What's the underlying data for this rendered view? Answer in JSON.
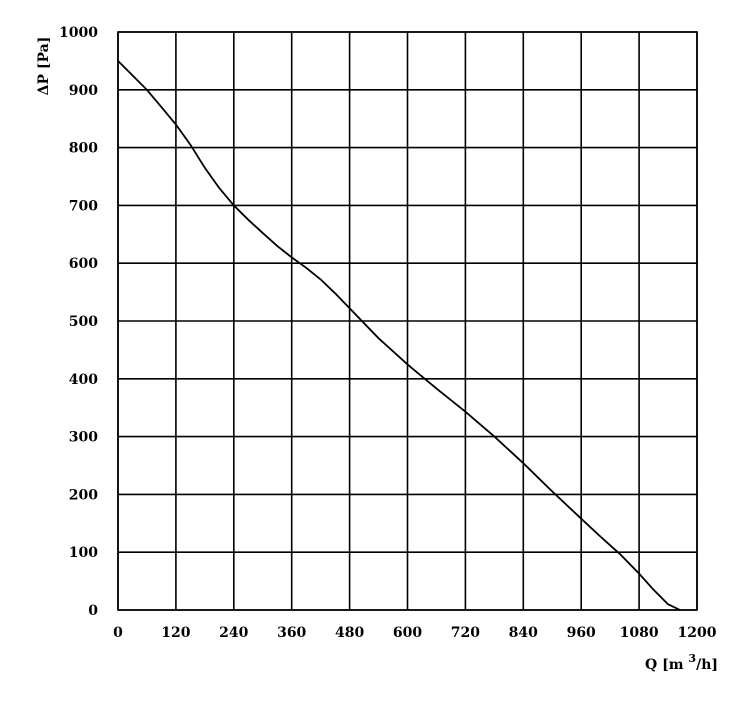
{
  "chart_data": {
    "type": "line",
    "title": "",
    "xlabel": "Q [m³/h]",
    "xlabel_parts": {
      "prefix": "Q [m ",
      "sup": "3",
      "suffix": "/h]"
    },
    "ylabel": "ΔP [Pa]",
    "xlim": [
      0,
      1200
    ],
    "ylim": [
      0,
      1000
    ],
    "x_ticks": [
      "0",
      "120",
      "240",
      "360",
      "480",
      "600",
      "720",
      "840",
      "960",
      "1080",
      "1200"
    ],
    "y_ticks": [
      "0",
      "100",
      "200",
      "300",
      "400",
      "500",
      "600",
      "700",
      "800",
      "900",
      "1000"
    ],
    "grid": true,
    "series": [
      {
        "x": [
          0,
          30,
          60,
          90,
          120,
          150,
          180,
          210,
          240,
          270,
          300,
          330,
          360,
          390,
          420,
          450,
          480,
          540,
          600,
          660,
          720,
          780,
          840,
          900,
          960,
          1000,
          1040,
          1080,
          1110,
          1140,
          1165
        ],
        "y": [
          950,
          925,
          900,
          870,
          840,
          805,
          765,
          730,
          700,
          675,
          652,
          630,
          610,
          592,
          572,
          548,
          522,
          470,
          425,
          383,
          343,
          300,
          254,
          205,
          158,
          127,
          97,
          63,
          35,
          10,
          0
        ]
      }
    ]
  }
}
